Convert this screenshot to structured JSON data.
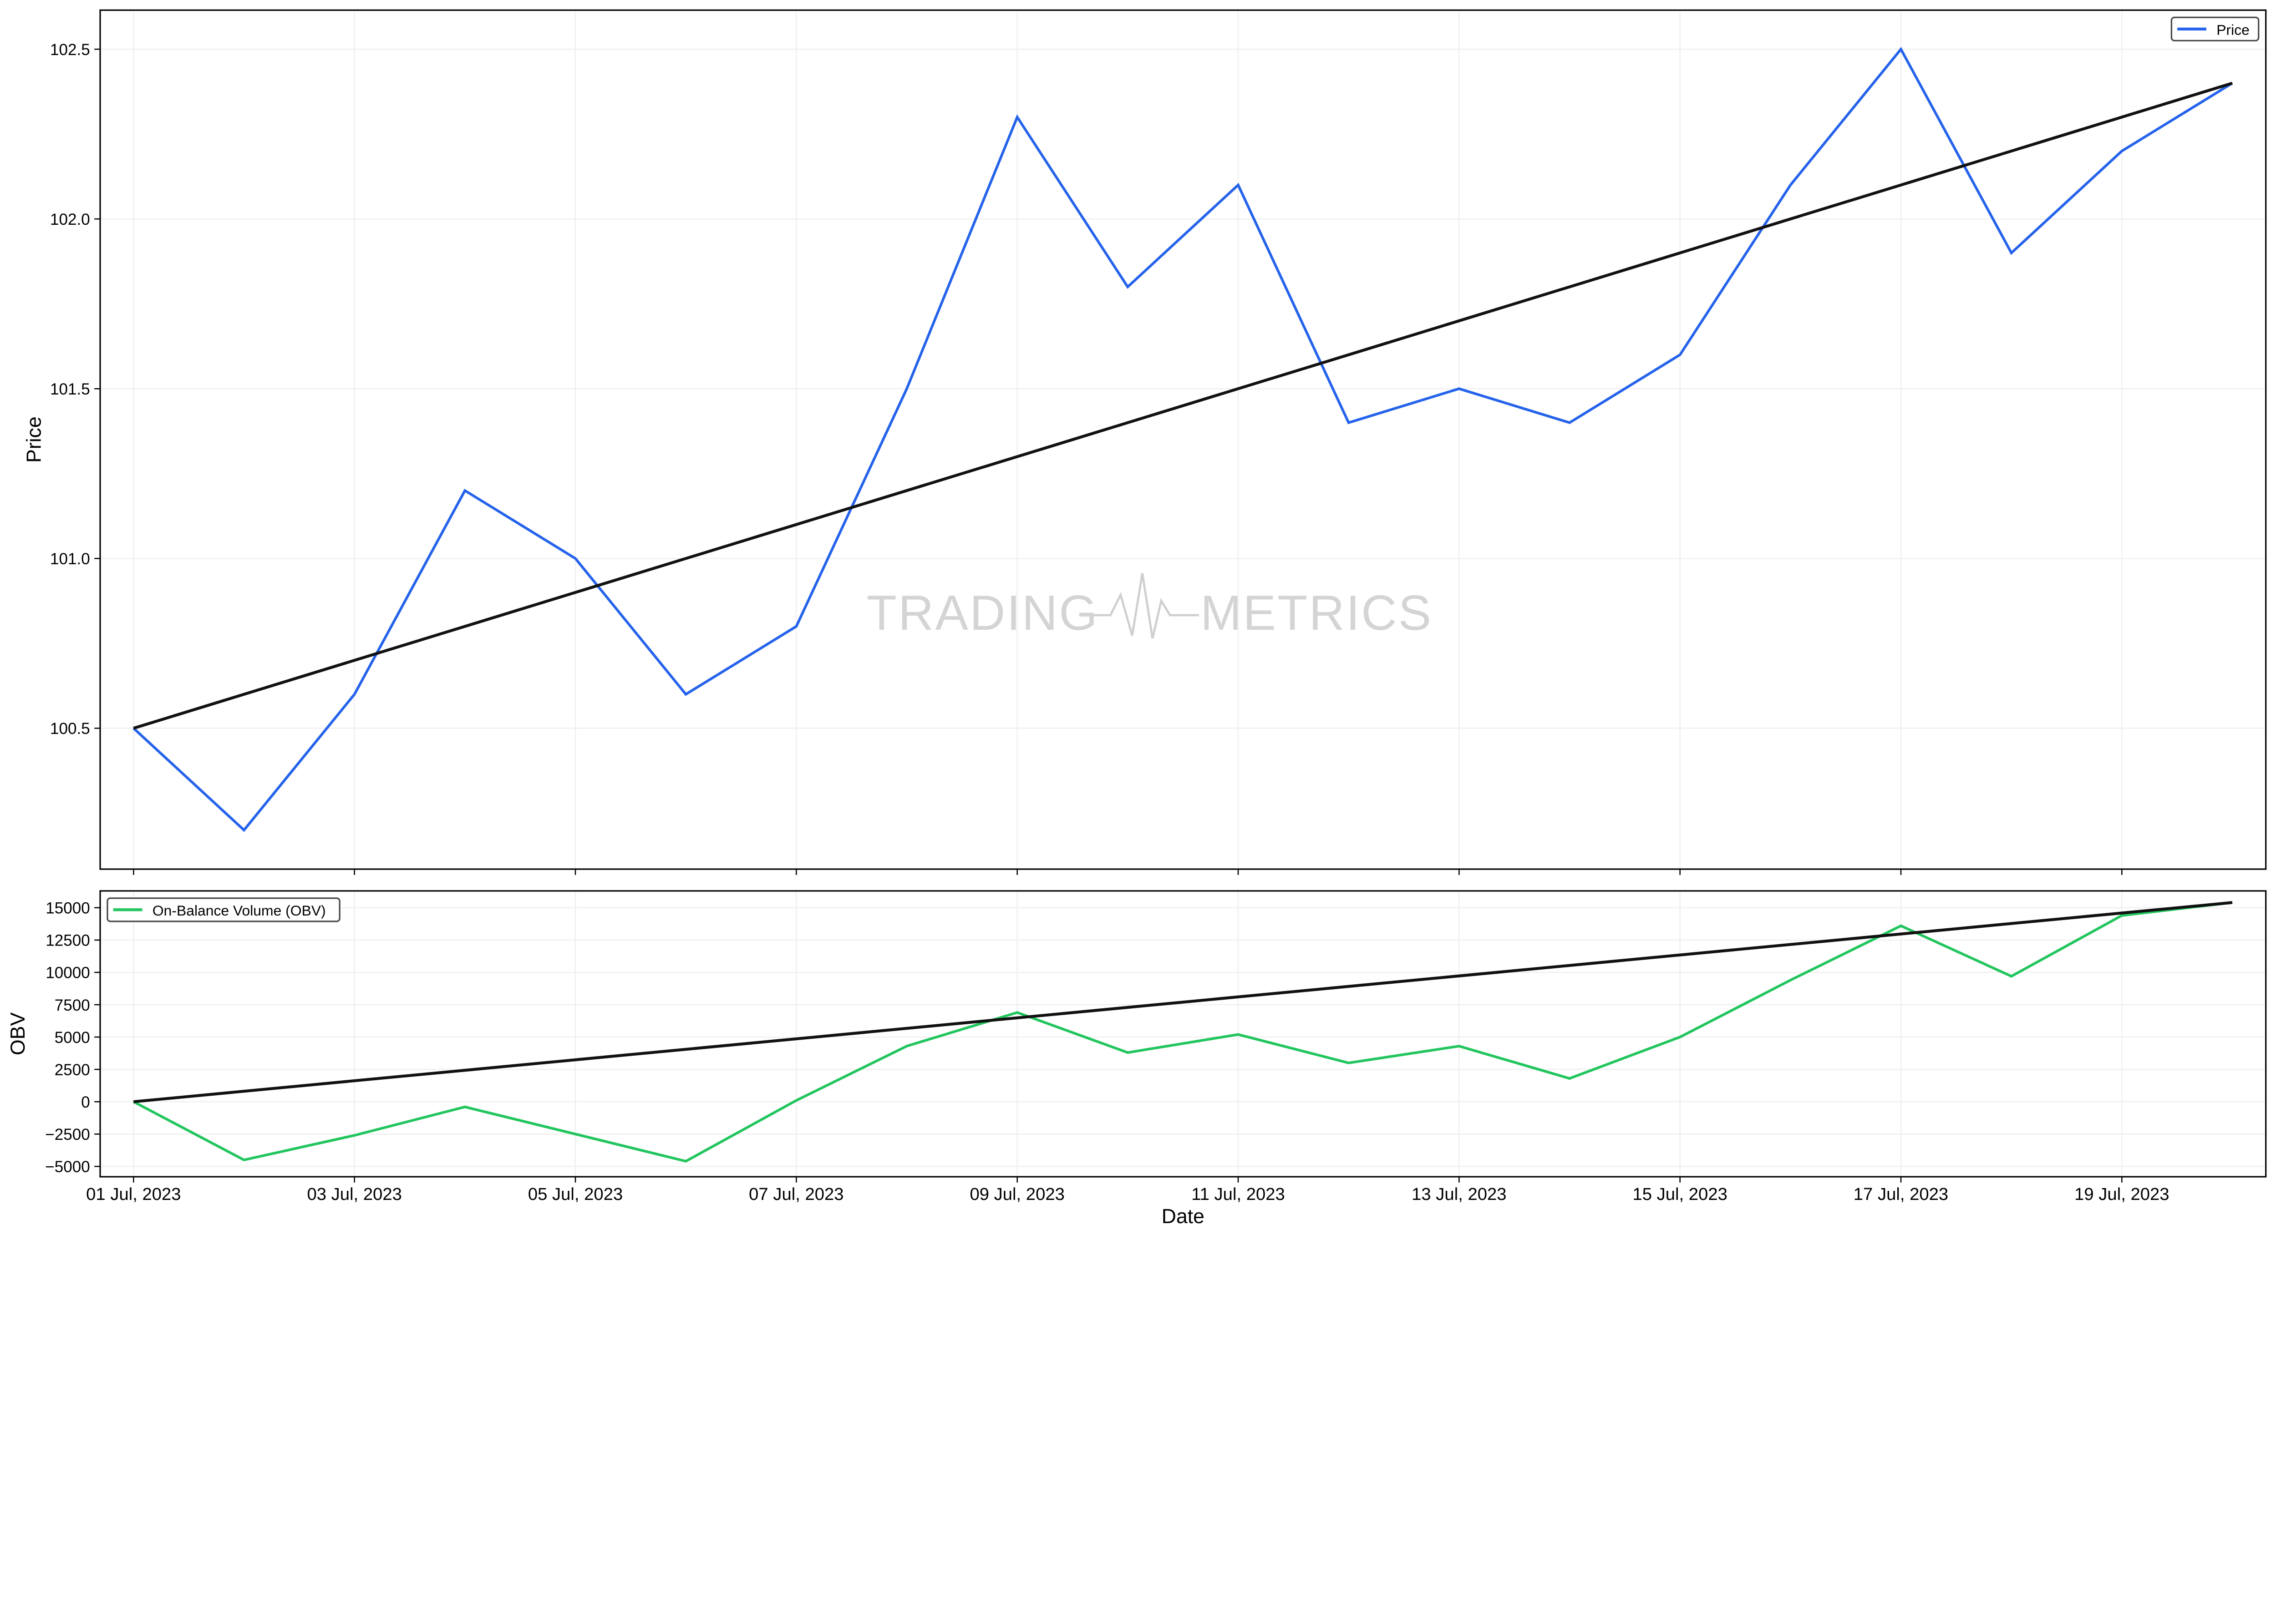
{
  "chart_data": [
    {
      "type": "line",
      "ylabel": "Price",
      "ylim": [
        100.085,
        102.615
      ],
      "yticks": [
        100.5,
        101.0,
        101.5,
        102.0,
        102.5
      ],
      "ytick_labels": [
        "100.5",
        "101.0",
        "101.5",
        "102.0",
        "102.5"
      ],
      "grid": true,
      "legend_placement": "top-right",
      "x": [
        "2023-07-01",
        "2023-07-02",
        "2023-07-03",
        "2023-07-04",
        "2023-07-05",
        "2023-07-06",
        "2023-07-07",
        "2023-07-08",
        "2023-07-09",
        "2023-07-10",
        "2023-07-11",
        "2023-07-12",
        "2023-07-13",
        "2023-07-14",
        "2023-07-15",
        "2023-07-16",
        "2023-07-17",
        "2023-07-18",
        "2023-07-19",
        "2023-07-20"
      ],
      "series": [
        {
          "name": "Price",
          "color": "#2563eb",
          "values": [
            100.5,
            100.2,
            100.6,
            101.2,
            101.0,
            100.6,
            100.8,
            101.5,
            102.3,
            101.8,
            102.1,
            101.4,
            101.5,
            101.4,
            101.6,
            102.1,
            102.5,
            101.9,
            102.2,
            102.4
          ]
        },
        {
          "color": "#111111",
          "values": [
            100.5,
            102.4
          ],
          "x": [
            "2023-07-01",
            "2023-07-20"
          ]
        }
      ]
    },
    {
      "type": "line",
      "xlabel": "Date",
      "ylabel": "OBV",
      "ylim": [
        -5800,
        16300
      ],
      "yticks": [
        -5000,
        -2500,
        0,
        2500,
        5000,
        7500,
        10000,
        12500,
        15000
      ],
      "ytick_labels": [
        "−5000",
        "−2500",
        "0",
        "2500",
        "5000",
        "7500",
        "10000",
        "12500",
        "15000"
      ],
      "grid": true,
      "legend_placement": "top-left",
      "xtick_labels": [
        "01 Jul, 2023",
        "03 Jul, 2023",
        "05 Jul, 2023",
        "07 Jul, 2023",
        "09 Jul, 2023",
        "11 Jul, 2023",
        "13 Jul, 2023",
        "15 Jul, 2023",
        "17 Jul, 2023",
        "19 Jul, 2023"
      ],
      "series": [
        {
          "name": "On-Balance Volume (OBV)",
          "color": "#22c55e",
          "values": [
            0,
            -4500,
            -2600,
            -400,
            -2500,
            -4600,
            100,
            4300,
            6900,
            3800,
            5200,
            3000,
            4300,
            1800,
            5000,
            9400,
            13600,
            9700,
            14400,
            15400
          ]
        },
        {
          "color": "#111111",
          "values": [
            0,
            15400
          ],
          "x": [
            "2023-07-01",
            "2023-07-20"
          ]
        }
      ]
    }
  ],
  "watermark": {
    "left": "TRADING",
    "right": "METRICS"
  }
}
